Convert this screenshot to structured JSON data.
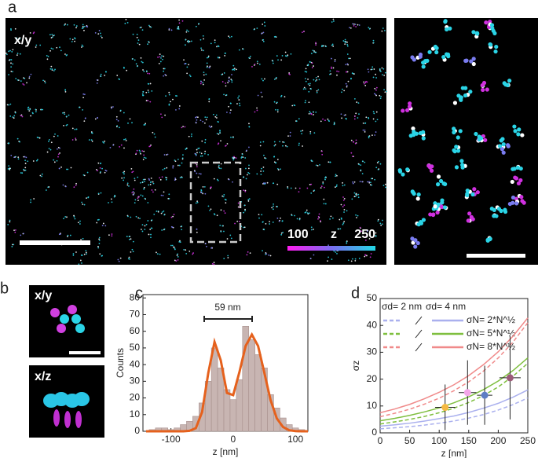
{
  "panels": {
    "a": {
      "letter": "a",
      "view": "x/y",
      "colorbar_min": "100",
      "colorbar_axis": "z",
      "colorbar_max": "250"
    },
    "b": {
      "letter": "b",
      "view_top": "x/y",
      "view_bottom": "x/z"
    },
    "c": {
      "letter": "c"
    },
    "d": {
      "letter": "d"
    }
  },
  "chart_data": [
    {
      "type": "histogram",
      "ylabel": "Counts",
      "xlabel": "z [nm]",
      "annotation": "59 nm",
      "bins": [
        -135,
        -125,
        -115,
        -105,
        -95,
        -85,
        -75,
        -65,
        -55,
        -45,
        -35,
        -25,
        -15,
        -5,
        5,
        15,
        25,
        35,
        45,
        55,
        65,
        75,
        85,
        95,
        105,
        115
      ],
      "values": [
        1,
        2,
        2,
        1,
        2,
        4,
        6,
        9,
        17,
        30,
        50,
        38,
        25,
        19,
        31,
        63,
        55,
        46,
        38,
        22,
        14,
        8,
        4,
        2,
        1
      ],
      "color": "#c8b5b2",
      "fit": {
        "color": "#e5611d",
        "x": [
          -140,
          -130,
          -120,
          -110,
          -100,
          -90,
          -80,
          -70,
          -60,
          -50,
          -40,
          -30,
          -20,
          -10,
          0,
          10,
          20,
          30,
          40,
          50,
          60,
          70,
          80,
          90,
          100,
          110,
          120
        ],
        "values": [
          0,
          0,
          0,
          0,
          0,
          0,
          0,
          0.3,
          1.9,
          11.5,
          35,
          53.6,
          42.6,
          23,
          21.7,
          35.5,
          51.2,
          58,
          51.2,
          35.2,
          18.8,
          7.8,
          2.6,
          0.6,
          0.1,
          0,
          0
        ]
      },
      "xlim": [
        -145,
        120
      ],
      "xticks": [
        -100,
        0,
        100
      ],
      "ylim": [
        0,
        82
      ],
      "yticks": [
        0,
        10,
        20,
        30,
        40,
        50,
        60,
        70,
        80
      ]
    },
    {
      "type": "scatter",
      "ylabel": "σz",
      "xlabel": "z [nm]",
      "legend_columns": [
        "σd= 2 nm",
        "σd= 4 nm"
      ],
      "x": [
        0,
        25,
        50,
        75,
        100,
        125,
        150,
        175,
        200,
        225,
        250
      ],
      "curves": [
        {
          "name": "σN= 2*N^½",
          "color": "#aab0ee",
          "sigma_d_2": [
            1.5,
            1.9,
            2.3,
            2.9,
            3.6,
            4.4,
            5.5,
            6.8,
            8.5,
            10.5,
            13.0
          ],
          "sigma_d_4": [
            2.5,
            3.0,
            3.6,
            4.4,
            5.3,
            6.3,
            7.6,
            9.2,
            11.0,
            13.3,
            16.0
          ]
        },
        {
          "name": "σN= 5*N^½",
          "color": "#7fbf3f",
          "sigma_d_2": [
            3.3,
            4.1,
            5.0,
            6.1,
            7.5,
            9.2,
            11.3,
            13.9,
            17.1,
            21.1,
            25.9
          ],
          "sigma_d_4": [
            4.5,
            5.4,
            6.5,
            7.8,
            9.3,
            11.2,
            13.4,
            16.1,
            19.3,
            23.2,
            27.9
          ]
        },
        {
          "name": "σN= 8*N^½",
          "color": "#f08a8a",
          "sigma_d_2": [
            6,
            7.3,
            8.8,
            10.7,
            12.9,
            15.7,
            19.0,
            23.0,
            27.9,
            33.8,
            41.0
          ],
          "sigma_d_4": [
            7.5,
            8.9,
            10.6,
            12.7,
            15.1,
            17.9,
            21.3,
            25.4,
            30.2,
            36.0,
            42.8
          ]
        }
      ],
      "points": {
        "x": [
          110,
          148,
          177,
          220
        ],
        "y": [
          9.5,
          15,
          14,
          20.5
        ],
        "xerr": [
          17,
          15,
          13,
          18
        ],
        "yerr": [
          8.5,
          12,
          11,
          15.5
        ],
        "colors": [
          "#f5b942",
          "#f3a6e8",
          "#5d7ec4",
          "#9b5b78"
        ]
      },
      "xlim": [
        0,
        250
      ],
      "xticks": [
        0,
        50,
        100,
        150,
        200,
        250
      ],
      "ylim": [
        0,
        50
      ],
      "yticks": [
        0,
        10,
        20,
        30,
        40,
        50
      ]
    }
  ]
}
